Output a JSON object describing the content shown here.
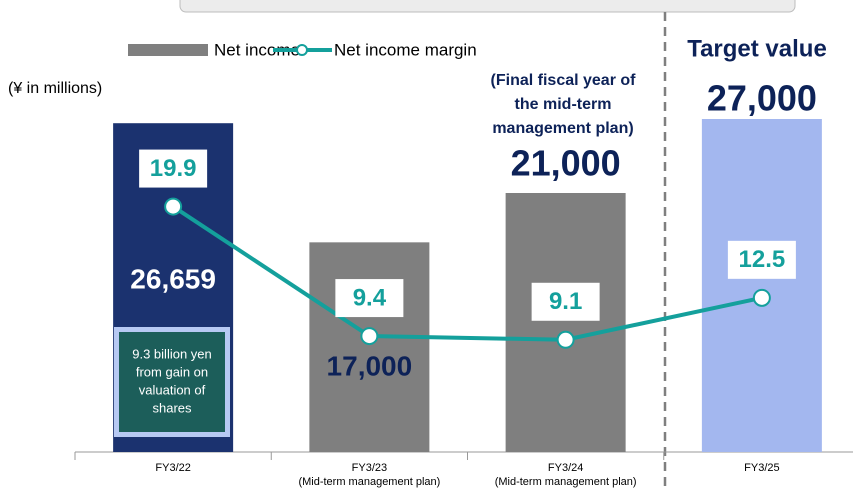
{
  "chart_data": {
    "type": "bar_line",
    "unit_label": "(¥ in millions)",
    "categories": [
      "FY3/22",
      "FY3/23",
      "FY3/24",
      "FY3/25"
    ],
    "category_notes": [
      null,
      "(Mid-term management plan)",
      "(Mid-term management plan)",
      null
    ],
    "series": [
      {
        "name": "Net income",
        "type": "bar",
        "color": "#7f7f7f",
        "colors": [
          "#1b326f",
          "#7f7f7f",
          "#7f7f7f",
          "#a3b7ef"
        ],
        "values": [
          26659,
          17000,
          21000,
          27000
        ],
        "value_labels": [
          "26,659",
          "17,000",
          "21,000",
          "27,000"
        ]
      },
      {
        "name": "Net income margin",
        "type": "line",
        "axis": "y2",
        "color": "#14a09c",
        "values": [
          19.9,
          9.4,
          9.1,
          12.5
        ]
      }
    ],
    "ylim": [
      0,
      30000
    ],
    "y2lim": [
      0,
      30
    ],
    "annotations": {
      "target": "Target value",
      "final_year": [
        "(Final fiscal year of",
        "the mid-term",
        "management plan)"
      ],
      "gain_note": [
        "9.3 billion yen",
        "from gain on",
        "valuation of",
        "shares"
      ]
    }
  }
}
